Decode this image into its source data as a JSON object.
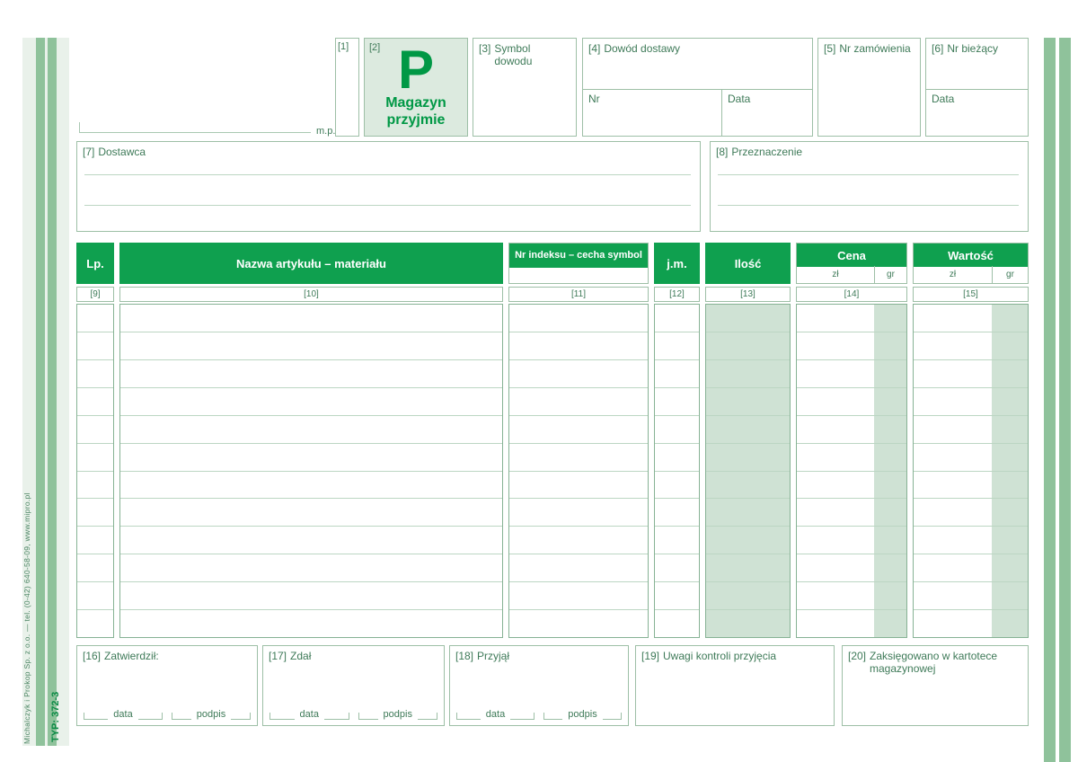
{
  "document": {
    "type_label": "TYP: 372-3",
    "printer_credit": "Michalczyk i Prokop Sp. z o.o. — tel. (0-42) 640-58-09, www.mipro.pl"
  },
  "colors": {
    "header_green": "#0fa04f",
    "accent_green": "#009845",
    "shade_green": "#cfe2d4",
    "stripe_green": "#8fc29b",
    "label_green": "#3e7a58"
  },
  "header": {
    "mp_label": "m.p.",
    "box1": {
      "num": "[1]"
    },
    "box2": {
      "num": "[2]",
      "letter": "P",
      "title_line1": "Magazyn",
      "title_line2": "przyjmie"
    },
    "box3": {
      "num": "[3]",
      "label": "Symbol dowodu"
    },
    "box4": {
      "num": "[4]",
      "label": "Dowód dostawy",
      "nr_label": "Nr",
      "data_label": "Data"
    },
    "box5": {
      "num": "[5]",
      "label": "Nr zamówienia"
    },
    "box6": {
      "num": "[6]",
      "label": "Nr bieżący",
      "data_label": "Data"
    }
  },
  "parties": {
    "dostawca": {
      "num": "[7]",
      "label": "Dostawca"
    },
    "przeznaczenie": {
      "num": "[8]",
      "label": "Przeznaczenie"
    }
  },
  "table": {
    "rows": 12,
    "columns": [
      {
        "key": "lp",
        "label": "Lp.",
        "num": "[9]"
      },
      {
        "key": "nazwa",
        "label": "Nazwa artykułu – materiału",
        "num": "[10]"
      },
      {
        "key": "indeks",
        "label": "Nr indeksu – cecha symbol",
        "num": "[11]"
      },
      {
        "key": "jm",
        "label": "j.m.",
        "num": "[12]"
      },
      {
        "key": "ilosc",
        "label": "Ilość",
        "num": "[13]"
      },
      {
        "key": "cena",
        "label": "Cena",
        "num": "[14]",
        "sub": [
          "zł",
          "gr"
        ]
      },
      {
        "key": "wartosc",
        "label": "Wartość",
        "num": "[15]",
        "sub": [
          "zł",
          "gr"
        ]
      }
    ]
  },
  "footer": {
    "data_label": "data",
    "podpis_label": "podpis",
    "boxes": [
      {
        "num": "[16]",
        "label": "Zatwierdził:"
      },
      {
        "num": "[17]",
        "label": "Zdał"
      },
      {
        "num": "[18]",
        "label": "Przyjął"
      },
      {
        "num": "[19]",
        "label": "Uwagi kontroli przyjęcia"
      },
      {
        "num": "[20]",
        "label": "Zaksięgowano w kartotece magazynowej"
      }
    ]
  }
}
